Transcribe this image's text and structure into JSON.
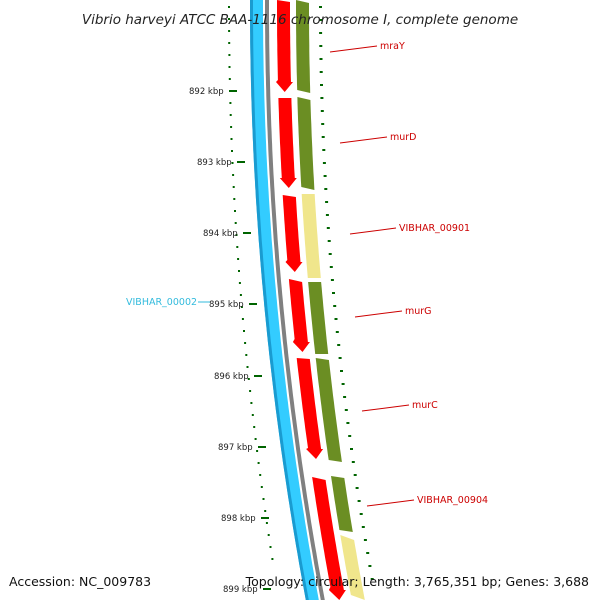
{
  "title": "Vibrio harveyi ATCC BAA-1116 chromosome I, complete genome",
  "footer": {
    "accession": "Accession: NC_009783",
    "summary": "Topology: circular; Length: 3,765,351 bp; Genes: 3,688"
  },
  "colors": {
    "reverse_strand_track": "#33ccff",
    "reverse_strand_edge": "#1a9bd0",
    "backbone": "#808080",
    "cds_forward": "#ff0000",
    "gene_track": "#6b8e23",
    "gene_light": "#f0e68c",
    "tick_mark": "#006400",
    "label_forward": "#cc0000",
    "label_reverse": "#33bbdd"
  },
  "ticks": [
    {
      "label": "892 kbp"
    },
    {
      "label": "893 kbp"
    },
    {
      "label": "894 kbp"
    },
    {
      "label": "895 kbp"
    },
    {
      "label": "896 kbp"
    },
    {
      "label": "897 kbp"
    },
    {
      "label": "898 kbp"
    },
    {
      "label": "899 kbp"
    }
  ],
  "genes": [
    {
      "label": "mraY"
    },
    {
      "label": "murD"
    },
    {
      "label": "VIBHAR_00901"
    },
    {
      "label": "murG"
    },
    {
      "label": "murC"
    },
    {
      "label": "VIBHAR_00904"
    }
  ],
  "reverse_genes": [
    {
      "label": "VIBHAR_00002"
    }
  ]
}
